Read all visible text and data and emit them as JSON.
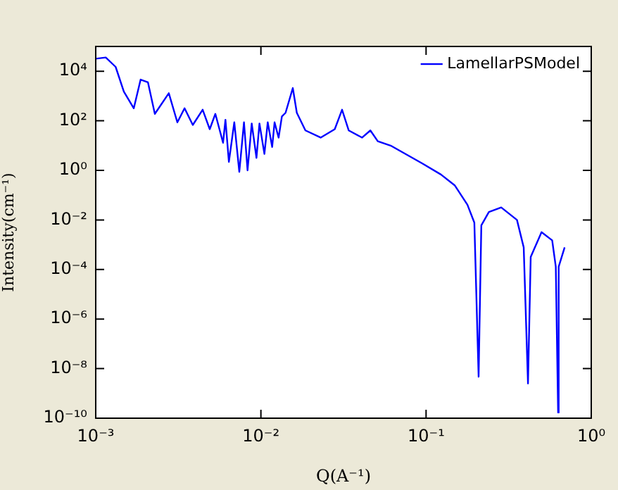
{
  "chart_data": {
    "type": "line",
    "xlabel": "Q(A⁻¹)",
    "ylabel": "Intensity(cm⁻¹)",
    "log": "xy",
    "grid": false,
    "legend": "top right",
    "marker": "none",
    "line_style": "solid",
    "xlim": [
      0.001,
      1
    ],
    "ylim": [
      1e-10,
      100000
    ],
    "xticks": [
      {
        "value": 0.001,
        "label": "10⁻³"
      },
      {
        "value": 0.01,
        "label": "10⁻²"
      },
      {
        "value": 0.1,
        "label": "10⁻¹"
      },
      {
        "value": 1,
        "label": "10⁰"
      }
    ],
    "yticks": [
      {
        "value": 1e-10,
        "label": "10⁻¹⁰"
      },
      {
        "value": 1e-08,
        "label": "10⁻⁸"
      },
      {
        "value": 1e-06,
        "label": "10⁻⁶"
      },
      {
        "value": 0.0001,
        "label": "10⁻⁴"
      },
      {
        "value": 0.01,
        "label": "10⁻²"
      },
      {
        "value": 1,
        "label": "10⁰"
      },
      {
        "value": 100,
        "label": "10²"
      },
      {
        "value": 10000,
        "label": "10⁴"
      }
    ],
    "series": [
      {
        "name": "LamellarPSModel",
        "color": "#0000ff",
        "x": [
          0.001,
          0.00115,
          0.00132,
          0.00148,
          0.0017,
          0.00187,
          0.00207,
          0.00228,
          0.00277,
          0.00312,
          0.00345,
          0.00387,
          0.00444,
          0.0049,
          0.0053,
          0.0059,
          0.0061,
          0.0064,
          0.0069,
          0.0074,
          0.0079,
          0.0083,
          0.0088,
          0.0094,
          0.0098,
          0.0105,
          0.011,
          0.0117,
          0.0121,
          0.0128,
          0.0134,
          0.0141,
          0.0156,
          0.0165,
          0.0186,
          0.023,
          0.028,
          0.031,
          0.034,
          0.041,
          0.046,
          0.051,
          0.061,
          0.095,
          0.123,
          0.149,
          0.178,
          0.196,
          0.208,
          0.216,
          0.24,
          0.285,
          0.355,
          0.39,
          0.414,
          0.43,
          0.5,
          0.58,
          0.61,
          0.63,
          0.635,
          0.69
        ],
        "values": [
          32000,
          36000,
          15000,
          1500,
          320,
          4600,
          3600,
          190,
          1300,
          87,
          320,
          68,
          280,
          46,
          190,
          13,
          110,
          2.2,
          87,
          0.87,
          87,
          1,
          78,
          3.2,
          78,
          4.6,
          87,
          8.8,
          87,
          21,
          150,
          210,
          2100,
          210,
          41,
          21,
          46,
          280,
          41,
          21,
          41,
          15,
          10,
          1.9,
          0.68,
          0.25,
          0.041,
          0.0078,
          4.7e-09,
          0.006,
          0.021,
          0.032,
          0.01,
          0.00078,
          2.5e-09,
          0.00032,
          0.0032,
          0.0015,
          0.00013,
          1.7e-10,
          0.00013,
          0.00078
        ]
      }
    ]
  }
}
